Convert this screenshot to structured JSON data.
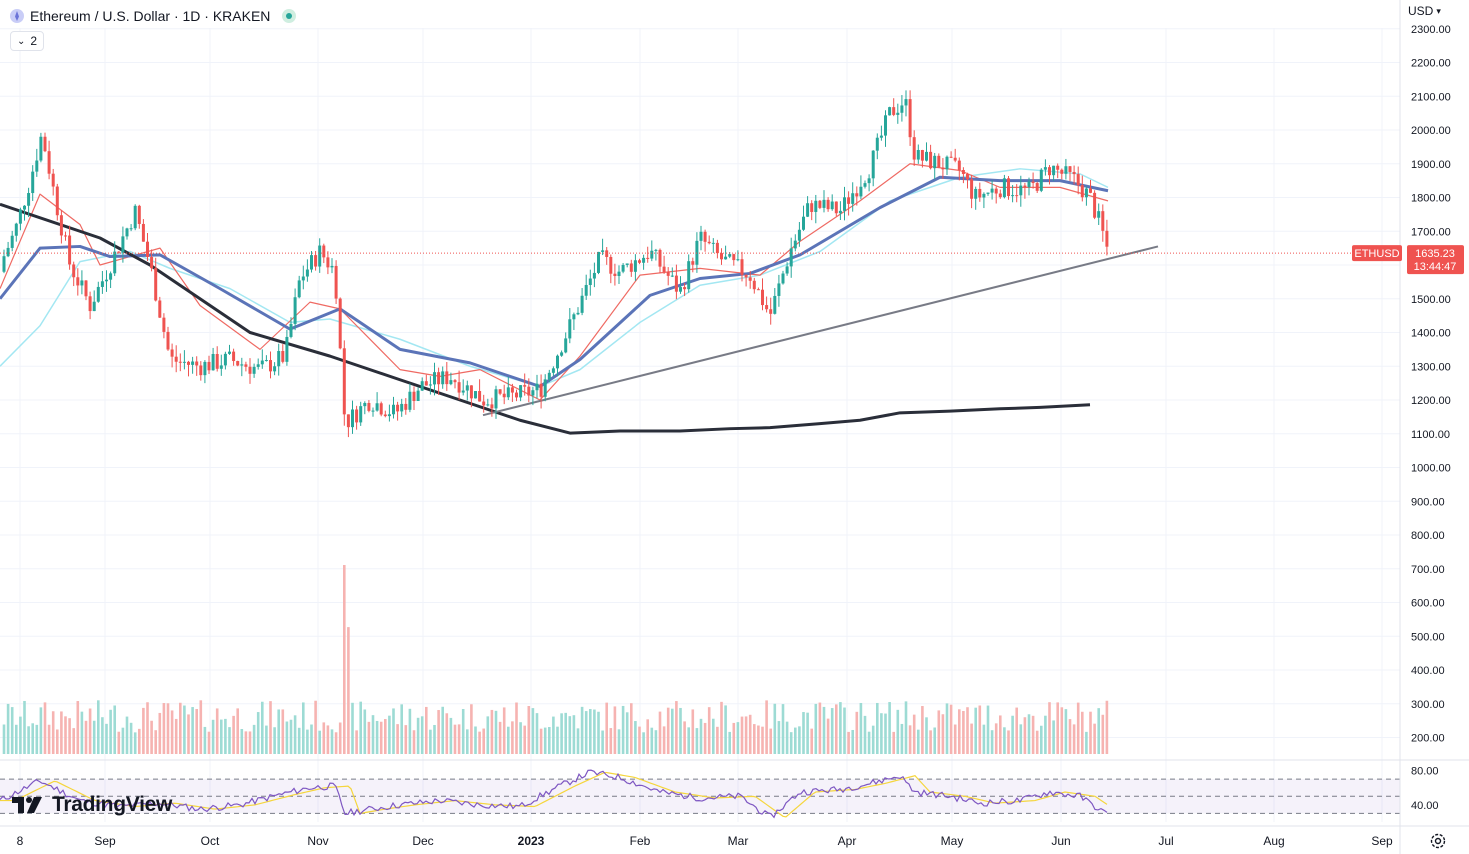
{
  "header": {
    "title": "Ethereum / U.S. Dollar · 1D · KRAKEN",
    "indicator_count": "2"
  },
  "currency": "USD",
  "logo_text": "TradingView",
  "price_label": {
    "symbol": "ETHUSD",
    "price": "1635.23",
    "countdown": "13:44:47"
  },
  "colors": {
    "up": "#26a69a",
    "down": "#ef5350",
    "sma200": "#2a2e39",
    "ma_blue": "#5b74b8",
    "ma_cyan": "#a3e7f2",
    "ma_red": "#ef6a63",
    "trendline": "#787b86",
    "rsi_line": "#7e57c2",
    "rsi_ma": "#f5d63d"
  },
  "chart_data": {
    "type": "candlestick",
    "symbol": "ETHUSD",
    "exchange": "KRAKEN",
    "interval": "1D",
    "y_ticks": [
      "2300.00",
      "2200.00",
      "2100.00",
      "2000.00",
      "1900.00",
      "1800.00",
      "1700.00",
      "1600.00",
      "1500.00",
      "1400.00",
      "1300.00",
      "1200.00",
      "1100.00",
      "1000.00",
      "900.00",
      "800.00",
      "700.00",
      "600.00",
      "500.00",
      "400.00",
      "300.00",
      "200.00"
    ],
    "ylim": [
      2300,
      200
    ],
    "x_ticks": [
      "8",
      "Sep",
      "Oct",
      "Nov",
      "Dec",
      "2023",
      "Feb",
      "Mar",
      "Apr",
      "May",
      "Jun",
      "Jul",
      "Aug",
      "Sep"
    ],
    "rsi_ticks": [
      "80.00",
      "40.00"
    ],
    "last_price": 1635.23,
    "moving_averages": {
      "sma200": [
        [
          0,
          1780
        ],
        [
          100,
          1680
        ],
        [
          150,
          1600
        ],
        [
          250,
          1400
        ],
        [
          330,
          1330
        ],
        [
          400,
          1260
        ],
        [
          470,
          1190
        ],
        [
          520,
          1140
        ],
        [
          570,
          1102
        ],
        [
          620,
          1108
        ],
        [
          680,
          1108
        ],
        [
          730,
          1115
        ],
        [
          770,
          1118
        ],
        [
          820,
          1130
        ],
        [
          860,
          1140
        ],
        [
          900,
          1162
        ],
        [
          950,
          1167
        ],
        [
          1000,
          1174
        ],
        [
          1040,
          1178
        ],
        [
          1090,
          1186
        ]
      ],
      "ma_blue": [
        [
          0,
          1500
        ],
        [
          40,
          1650
        ],
        [
          80,
          1655
        ],
        [
          110,
          1625
        ],
        [
          160,
          1630
        ],
        [
          220,
          1530
        ],
        [
          290,
          1410
        ],
        [
          340,
          1470
        ],
        [
          400,
          1350
        ],
        [
          470,
          1310
        ],
        [
          540,
          1240
        ],
        [
          580,
          1320
        ],
        [
          650,
          1510
        ],
        [
          700,
          1560
        ],
        [
          750,
          1575
        ],
        [
          800,
          1630
        ],
        [
          880,
          1770
        ],
        [
          940,
          1860
        ],
        [
          1000,
          1850
        ],
        [
          1060,
          1850
        ],
        [
          1108,
          1820
        ]
      ],
      "ma_cyan": [
        [
          0,
          1300
        ],
        [
          40,
          1420
        ],
        [
          80,
          1610
        ],
        [
          130,
          1640
        ],
        [
          170,
          1590
        ],
        [
          230,
          1530
        ],
        [
          290,
          1430
        ],
        [
          330,
          1440
        ],
        [
          400,
          1380
        ],
        [
          470,
          1300
        ],
        [
          540,
          1240
        ],
        [
          580,
          1290
        ],
        [
          640,
          1430
        ],
        [
          700,
          1540
        ],
        [
          760,
          1570
        ],
        [
          820,
          1640
        ],
        [
          890,
          1790
        ],
        [
          960,
          1860
        ],
        [
          1020,
          1885
        ],
        [
          1080,
          1870
        ],
        [
          1108,
          1830
        ]
      ],
      "ma_red": [
        [
          0,
          1530
        ],
        [
          40,
          1810
        ],
        [
          80,
          1720
        ],
        [
          100,
          1600
        ],
        [
          160,
          1650
        ],
        [
          200,
          1480
        ],
        [
          260,
          1350
        ],
        [
          310,
          1490
        ],
        [
          340,
          1470
        ],
        [
          400,
          1290
        ],
        [
          440,
          1270
        ],
        [
          480,
          1290
        ],
        [
          540,
          1200
        ],
        [
          580,
          1330
        ],
        [
          640,
          1570
        ],
        [
          700,
          1590
        ],
        [
          760,
          1570
        ],
        [
          800,
          1670
        ],
        [
          860,
          1790
        ],
        [
          910,
          1900
        ],
        [
          960,
          1880
        ],
        [
          1000,
          1830
        ],
        [
          1060,
          1830
        ],
        [
          1108,
          1790
        ]
      ],
      "trendline": [
        [
          483,
          1155
        ],
        [
          1158,
          1655
        ]
      ]
    },
    "volume_ylim": [
      0,
      720
    ],
    "rsi_levels": [
      70,
      30
    ],
    "rsi_ylim": [
      20,
      90
    ]
  }
}
